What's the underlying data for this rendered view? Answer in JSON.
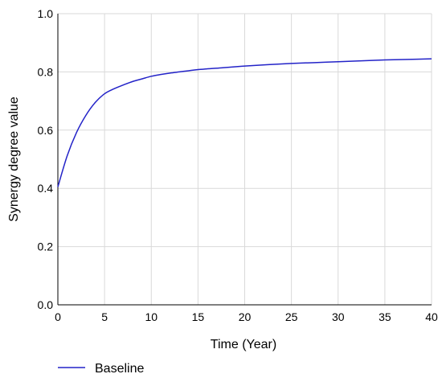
{
  "chart_data": {
    "type": "line",
    "title": "",
    "xlabel": "Time (Year)",
    "ylabel": "Synergy degree value",
    "xlim": [
      0,
      40
    ],
    "ylim": [
      0.0,
      1.0
    ],
    "x_ticks": [
      0,
      5,
      10,
      15,
      20,
      25,
      30,
      35,
      40
    ],
    "y_ticks": [
      0.0,
      0.2,
      0.4,
      0.6,
      0.8,
      1.0
    ],
    "x_tick_labels": [
      "0",
      "5",
      "10",
      "15",
      "20",
      "25",
      "30",
      "35",
      "40"
    ],
    "y_tick_labels": [
      "0.0",
      "0.2",
      "0.4",
      "0.6",
      "0.8",
      "1.0"
    ],
    "grid": true,
    "legend_position": "bottom-left",
    "series": [
      {
        "name": "Baseline",
        "color": "#2323c8",
        "x": [
          0,
          1,
          2,
          3,
          4,
          5,
          6,
          7,
          8,
          9,
          10,
          11,
          12,
          13,
          14,
          15,
          17.5,
          20,
          22.5,
          25,
          27.5,
          30,
          32.5,
          35,
          37.5,
          40
        ],
        "y": [
          0.405,
          0.512,
          0.592,
          0.651,
          0.695,
          0.725,
          0.742,
          0.755,
          0.767,
          0.776,
          0.785,
          0.791,
          0.796,
          0.8,
          0.804,
          0.808,
          0.814,
          0.82,
          0.825,
          0.829,
          0.832,
          0.835,
          0.838,
          0.841,
          0.843,
          0.845
        ]
      }
    ]
  }
}
